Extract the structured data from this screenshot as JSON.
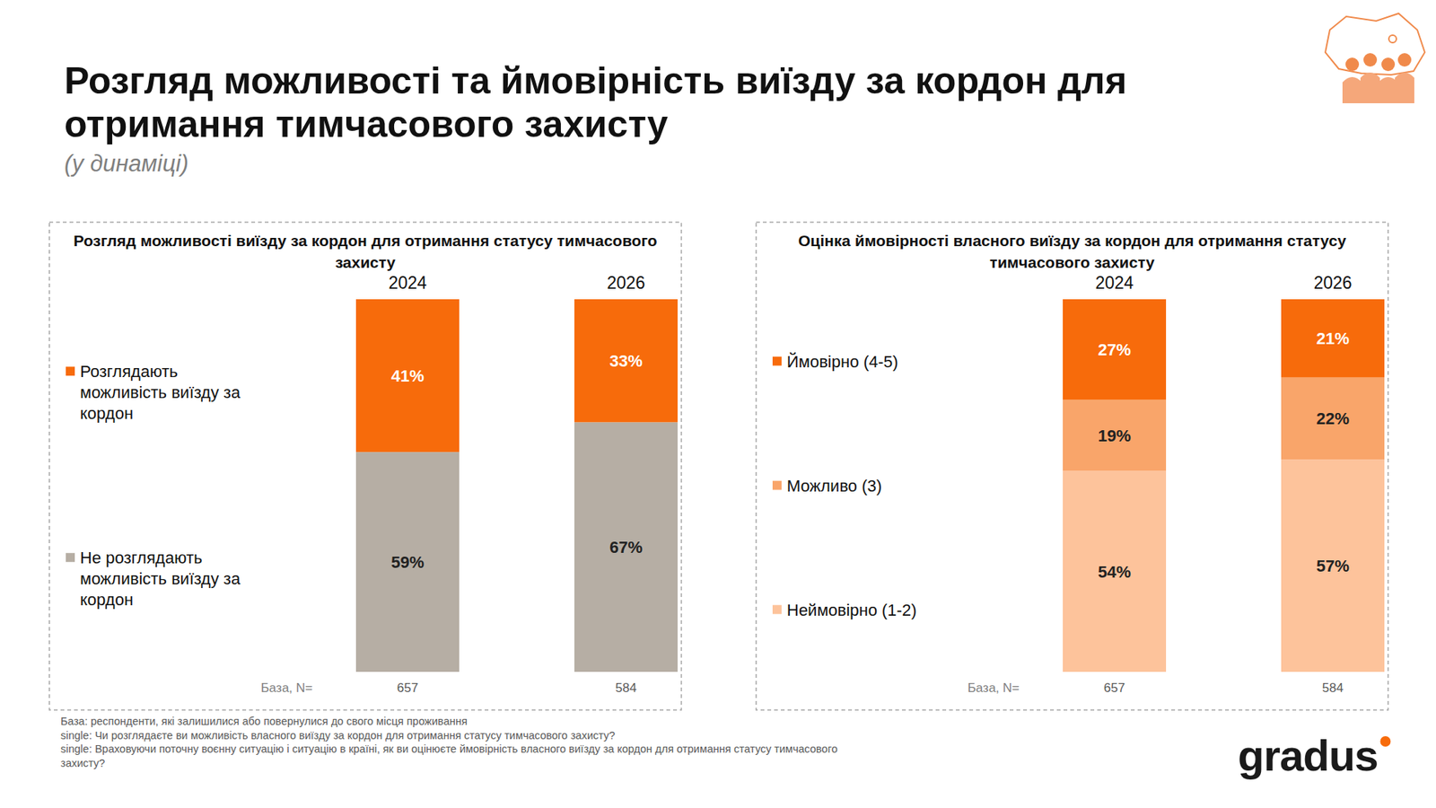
{
  "page": {
    "title": "Розгляд можливості та ймовірність виїзду за кордон для отримання тимчасового захисту",
    "subtitle": "(у динаміці)",
    "notes": [
      "База: респонденти, які залишилися або повернулися до свого місця проживання",
      "single: Чи розглядаєте ви можливість власного виїзду за кордон для отримання статусу тимчасового захисту?",
      "single: Враховуючи поточну воєнну ситуацію і ситуацію в країні, як ви оцінюєте ймовірність власного виїзду за кордон для отримання статусу тимчасового захисту?"
    ],
    "logo": "gradus"
  },
  "chart_data": [
    {
      "type": "bar",
      "stacked": true,
      "data_labels": true,
      "tick_labels": false,
      "legend": "left",
      "title": "Розгляд можливості виїзду за кордон для отримання статусу тимчасового захисту",
      "categories": [
        "2024",
        "2026"
      ],
      "ylim": [
        0,
        100
      ],
      "series": [
        {
          "name": "Розглядають можливість виїзду за кордон",
          "color": "#f76b0b",
          "values": [
            41,
            33
          ],
          "value_labels": [
            "41%",
            "33%"
          ]
        },
        {
          "name": "Не розглядають можливість виїзду за кордон",
          "color": "#b6aea4",
          "values": [
            59,
            67
          ],
          "value_labels": [
            "59%",
            "67%"
          ]
        }
      ],
      "base": {
        "label": "База, N=",
        "values": [
          657,
          584
        ]
      }
    },
    {
      "type": "bar",
      "stacked": true,
      "data_labels": true,
      "tick_labels": false,
      "legend": "left",
      "title": "Оцінка ймовірності власного виїзду за кордон для отримання статусу тимчасового захисту",
      "categories": [
        "2024",
        "2026"
      ],
      "ylim": [
        0,
        100
      ],
      "series": [
        {
          "name": "Ймовірно (4-5)",
          "color": "#f76b0b",
          "values": [
            27,
            21
          ],
          "value_labels": [
            "27%",
            "21%"
          ]
        },
        {
          "name": "Можливо (3)",
          "color": "#f9a56a",
          "values": [
            19,
            22
          ],
          "value_labels": [
            "19%",
            "22%"
          ]
        },
        {
          "name": "Неймовірно (1-2)",
          "color": "#fdc39b",
          "values": [
            54,
            57
          ],
          "value_labels": [
            "54%",
            "57%"
          ]
        }
      ],
      "base": {
        "label": "База, N=",
        "values": [
          657,
          584
        ]
      }
    }
  ]
}
